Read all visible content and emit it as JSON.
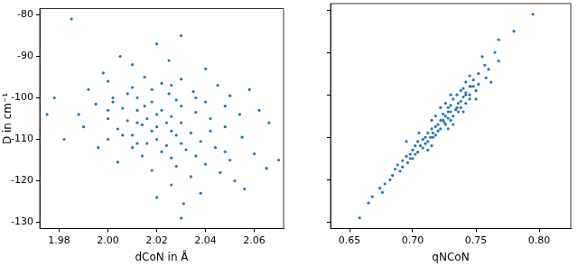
{
  "chart_data": [
    {
      "type": "scatter",
      "x_label": "dCoN in Å",
      "y_label": "D in cm⁻¹",
      "color": "#1f77b4",
      "marker": "circle",
      "grid": false,
      "xlim": [
        1.972,
        2.072
      ],
      "xticks": [
        1.98,
        {
          "value": 2,
          "label": "2.00"
        },
        2.02,
        2.04,
        2.06
      ],
      "ylim": [
        -131.5,
        -78.5
      ],
      "yticks": [
        -130,
        -120,
        -110,
        -100,
        -90,
        -80
      ],
      "x": [
        1.985,
        2.03,
        2.02,
        2.005,
        2.025,
        2.01,
        2.04,
        1.998,
        2.015,
        2.03,
        2.0,
        2.022,
        2.045,
        2.01,
        2.018,
        1.992,
        2.035,
        2.008,
        2.025,
        2.05,
        2.012,
        2.002,
        2.028,
        2.018,
        2.04,
        1.995,
        2.015,
        2.03,
        2.006,
        2.022,
        2.012,
        2.036,
        2.02,
        1.988,
        2.026,
        2.016,
        2.042,
        2.008,
        2.024,
        2.03,
        2.014,
        2.02,
        2.048,
        2.004,
        2.026,
        2.018,
        2.034,
        2.01,
        2.028,
        2.055,
        2.02,
        2.0,
        2.038,
        2.016,
        2.03,
        2.024,
        2.044,
        2.01,
        2.032,
        2.022,
        2.06,
        2.014,
        2.036,
        2.026,
        2.05,
        2.004,
        2.04,
        2.028,
        2.065,
        2.018,
        2.046,
        2.034,
        2.052,
        2.026,
        2.056,
        2.038,
        2.02,
        2.031,
        2.03,
        1.975,
        1.978,
        2.058,
        2.07,
        2.062,
        1.982,
        2.066,
        2.002,
        2.0,
        2.042,
        1.996,
        2.026,
        2.048,
        2.006,
        2.048,
        2.036,
        1.99,
        2.054,
        2.012,
        2.012,
        2.0
      ],
      "values": [
        -81,
        -85,
        -87,
        -90,
        -91,
        -92,
        -93,
        -94,
        -95,
        -95.5,
        -96,
        -96.5,
        -97,
        -97.5,
        -98,
        -98,
        -98.5,
        -99,
        -99,
        -99.5,
        -100,
        -100,
        -100.5,
        -101,
        -101,
        -101.5,
        -102,
        -102,
        -102.5,
        -103,
        -103,
        -103.5,
        -104,
        -104,
        -104.5,
        -105,
        -105,
        -105.5,
        -106,
        -106,
        -106.5,
        -107,
        -107,
        -107.5,
        -108,
        -108,
        -108.5,
        -109,
        -109,
        -109.5,
        -110,
        -110,
        -110.5,
        -111,
        -111,
        -111.5,
        -112,
        -112,
        -112.5,
        -113,
        -113.5,
        -114,
        -114,
        -114.5,
        -115,
        -115.5,
        -116,
        -116.5,
        -117,
        -117.5,
        -118,
        -119,
        -120,
        -121,
        -122,
        -123,
        -124,
        -125.5,
        -129,
        -104,
        -100,
        -98,
        -115,
        -103,
        -110,
        -106,
        -101,
        -105,
        -108,
        -112,
        -97,
        -102,
        -109,
        -113,
        -100,
        -107,
        -104,
        -111,
        -106,
        -103
      ]
    },
    {
      "type": "scatter",
      "x_label": "qNCoN",
      "color": "#1f77b4",
      "marker": "circle",
      "grid": false,
      "tick_labels": "x",
      "xlim": [
        0.635,
        0.825
      ],
      "xticks": [
        0.65,
        {
          "value": 0.7,
          "label": "0.70"
        },
        0.75,
        {
          "value": 0.8,
          "label": "0.80"
        }
      ],
      "ylim": [
        -131.5,
        -78.5
      ],
      "yticks": [
        -130,
        -120,
        -110,
        -100,
        -90,
        -80
      ],
      "x": [
        0.795,
        0.78,
        0.768,
        0.765,
        0.755,
        0.768,
        0.757,
        0.76,
        0.752,
        0.745,
        0.758,
        0.748,
        0.742,
        0.752,
        0.745,
        0.748,
        0.74,
        0.75,
        0.738,
        0.742,
        0.745,
        0.735,
        0.74,
        0.745,
        0.732,
        0.738,
        0.736,
        0.742,
        0.73,
        0.738,
        0.728,
        0.734,
        0.73,
        0.736,
        0.724,
        0.732,
        0.726,
        0.728,
        0.722,
        0.73,
        0.725,
        0.72,
        0.726,
        0.718,
        0.722,
        0.715,
        0.72,
        0.716,
        0.712,
        0.718,
        0.71,
        0.716,
        0.708,
        0.712,
        0.704,
        0.71,
        0.706,
        0.702,
        0.708,
        0.7,
        0.704,
        0.698,
        0.702,
        0.695,
        0.698,
        0.692,
        0.696,
        0.688,
        0.692,
        0.686,
        0.69,
        0.684,
        0.682,
        0.678,
        0.674,
        0.676,
        0.668,
        0.665,
        0.658,
        0.728,
        0.742,
        0.746,
        0.7,
        0.735,
        0.714,
        0.724,
        0.75,
        0.718,
        0.728,
        0.715,
        0.762,
        0.726,
        0.705,
        0.712,
        0.73,
        0.732,
        0.74,
        0.695,
        0.715,
        0.722
      ],
      "values": [
        -81,
        -85,
        -87,
        -90,
        -91,
        -92,
        -93,
        -94,
        -95,
        -95.5,
        -96,
        -96.5,
        -97,
        -97.5,
        -98,
        -98,
        -98.5,
        -99,
        -99,
        -99.5,
        -100,
        -100,
        -100.5,
        -101,
        -101,
        -101.5,
        -102,
        -102,
        -102.5,
        -103,
        -103,
        -103.5,
        -104,
        -104,
        -104.5,
        -105,
        -105,
        -105.5,
        -106,
        -106,
        -106.5,
        -107,
        -107,
        -107.5,
        -108,
        -108,
        -108.5,
        -109,
        -109,
        -109.5,
        -110,
        -110,
        -110.5,
        -111,
        -111,
        -111.5,
        -112,
        -112,
        -112.5,
        -113,
        -113.5,
        -114,
        -114,
        -114.5,
        -115,
        -115.5,
        -116,
        -116.5,
        -117,
        -117.5,
        -118,
        -119,
        -120,
        -121,
        -122,
        -123,
        -124,
        -125.5,
        -129,
        -104,
        -100,
        -98,
        -115,
        -103,
        -110,
        -106,
        -101,
        -105,
        -108,
        -112,
        -97,
        -102,
        -109,
        -113,
        -100,
        -107,
        -104,
        -111,
        -106,
        -103
      ]
    }
  ]
}
